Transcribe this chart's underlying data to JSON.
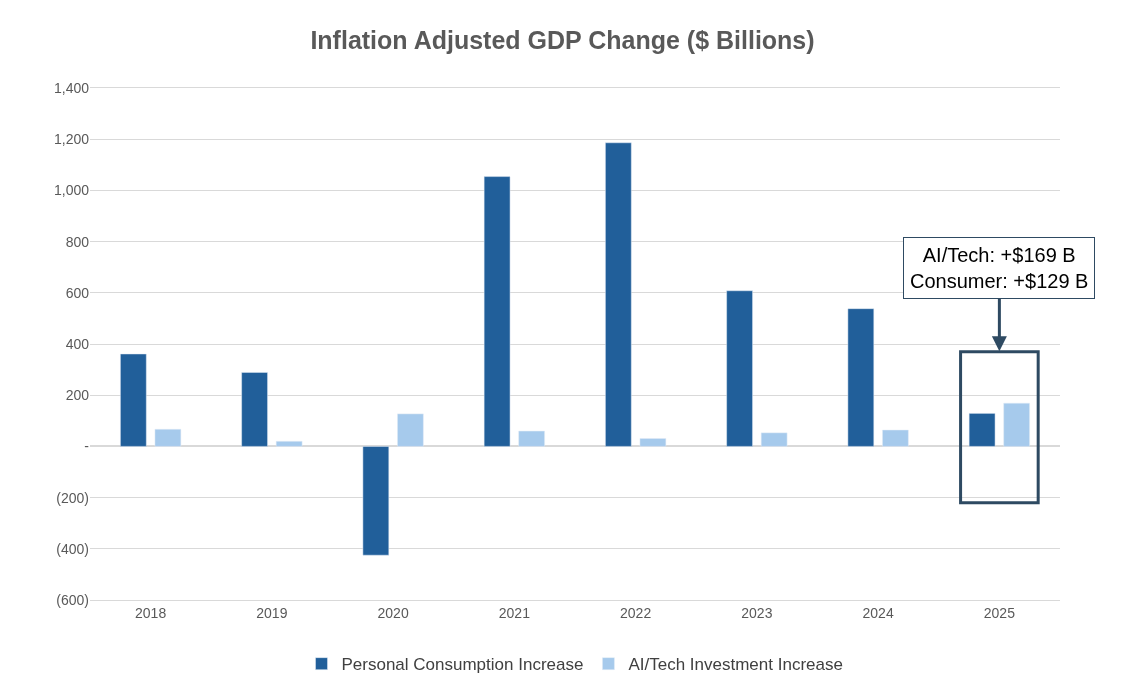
{
  "chart_data": {
    "type": "bar",
    "title": "Inflation Adjusted GDP Change ($ Billions)",
    "categories": [
      "2018",
      "2019",
      "2020",
      "2021",
      "2022",
      "2023",
      "2024",
      "2025"
    ],
    "series": [
      {
        "name": "Personal Consumption Increase",
        "color": "#215f9a",
        "values": [
          361,
          289,
          -425,
          1054,
          1186,
          608,
          538,
          129
        ]
      },
      {
        "name": "AI/Tech Investment Increase",
        "color": "#a6caec",
        "values": [
          67,
          20,
          127,
          60,
          31,
          53,
          64,
          169
        ]
      }
    ],
    "ylim": [
      -600,
      1400
    ],
    "yticks": [
      {
        "value": -600,
        "label": "(600)"
      },
      {
        "value": -400,
        "label": "(400)"
      },
      {
        "value": -200,
        "label": "(200)"
      },
      {
        "value": 0,
        "label": "-"
      },
      {
        "value": 200,
        "label": "200"
      },
      {
        "value": 400,
        "label": "400"
      },
      {
        "value": 600,
        "label": "600"
      },
      {
        "value": 800,
        "label": "800"
      },
      {
        "value": 1000,
        "label": "1,000"
      },
      {
        "value": 1200,
        "label": "1,200"
      },
      {
        "value": 1400,
        "label": "1,400"
      }
    ],
    "grid": "y",
    "legend": "bottom",
    "annotations": [
      {
        "text": "AI/Tech: +$169 B\nConsumer: +$129 B",
        "x": "2025",
        "y": 169
      }
    ]
  }
}
